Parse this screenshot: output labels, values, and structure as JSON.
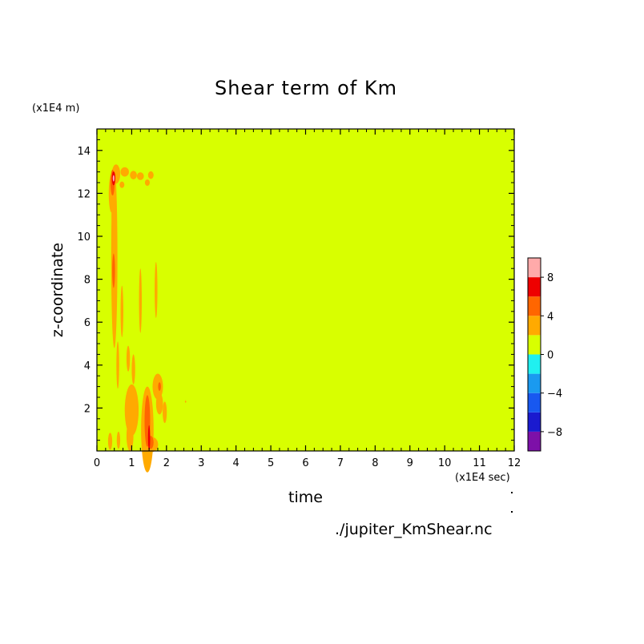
{
  "chart_data": {
    "type": "heatmap",
    "title": "Shear term of Km",
    "xlabel": "time",
    "ylabel": "z-coordinate",
    "x_unit": "(x1E4 sec)",
    "y_unit": "(x1E4 m)",
    "xlim": [
      0,
      12
    ],
    "ylim": [
      0,
      15
    ],
    "xticks": [
      "0",
      "1",
      "2",
      "3",
      "4",
      "5",
      "6",
      "7",
      "8",
      "9",
      "10",
      "11",
      "12"
    ],
    "yticks": [
      "2",
      "4",
      "6",
      "8",
      "10",
      "12",
      "14"
    ],
    "background_level": "0 to 2",
    "colorbar": {
      "levels": [
        -10,
        -8,
        -6,
        -4,
        -2,
        0,
        2,
        4,
        6,
        8,
        10
      ],
      "labels": [
        "-8",
        "-4",
        "0",
        "4",
        "8"
      ],
      "colors": [
        "#7d10a8",
        "#1a1acf",
        "#1858f0",
        "#1a9af0",
        "#20f0f0",
        "#d8ff00",
        "#ffaa00",
        "#ff6600",
        "#ee0000",
        "#ffaaaa"
      ]
    },
    "features": [
      {
        "x": 0.48,
        "y": 12.7,
        "level": "8"
      },
      {
        "x": 0.5,
        "y": 9.0,
        "level": "2 to 4"
      },
      {
        "x": 1.0,
        "y": 1.8,
        "level": "2 to 4"
      },
      {
        "x": 1.5,
        "y": 0.5,
        "level": "6 to 8"
      },
      {
        "x": 1.75,
        "y": 3.0,
        "level": "2 to 4"
      }
    ],
    "source": "./jupiter_KmShear.nc"
  }
}
